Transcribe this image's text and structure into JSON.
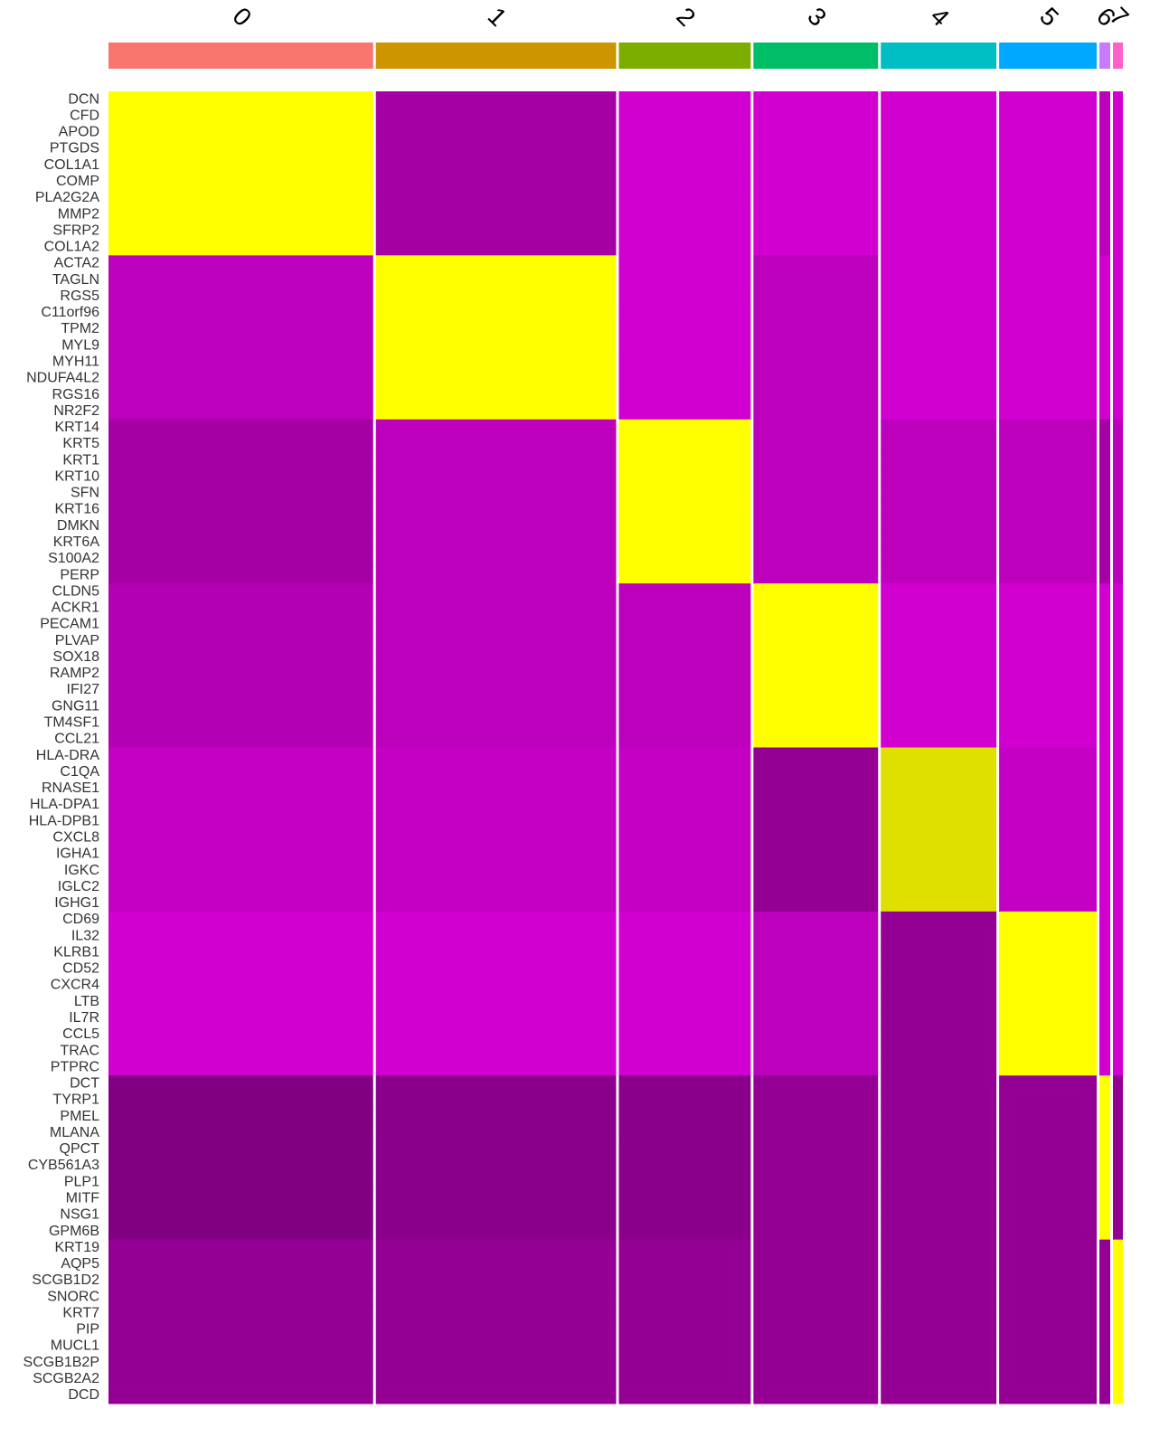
{
  "chart_data": {
    "type": "heatmap",
    "clusters": [
      {
        "name": "0",
        "color": "#F8766D",
        "cells": 293
      },
      {
        "name": "1",
        "color": "#CD9600",
        "cells": 266
      },
      {
        "name": "2",
        "color": "#7CAE00",
        "cells": 146
      },
      {
        "name": "3",
        "color": "#00BE67",
        "cells": 138
      },
      {
        "name": "4",
        "color": "#00BFC4",
        "cells": 128
      },
      {
        "name": "5",
        "color": "#00A9FF",
        "cells": 108
      },
      {
        "name": "6",
        "color": "#C77CFF",
        "cells": 12
      },
      {
        "name": "7",
        "color": "#FF61CC",
        "cells": 11
      }
    ],
    "rows": [
      "DCN",
      "CFD",
      "APOD",
      "PTGDS",
      "COL1A1",
      "COMP",
      "PLA2G2A",
      "MMP2",
      "SFRP2",
      "COL1A2",
      "ACTA2",
      "TAGLN",
      "RGS5",
      "C11orf96",
      "TPM2",
      "MYL9",
      "MYH11",
      "NDUFA4L2",
      "RGS16",
      "NR2F2",
      "KRT14",
      "KRT5",
      "KRT1",
      "KRT10",
      "SFN",
      "KRT16",
      "DMKN",
      "KRT6A",
      "S100A2",
      "PERP",
      "CLDN5",
      "ACKR1",
      "PECAM1",
      "PLVAP",
      "SOX18",
      "RAMP2",
      "IFI27",
      "GNG11",
      "TM4SF1",
      "CCL21",
      "HLA-DRA",
      "C1QA",
      "RNASE1",
      "HLA-DPA1",
      "HLA-DPB1",
      "CXCL8",
      "IGHA1",
      "IGKC",
      "IGLC2",
      "IGHG1",
      "CD69",
      "IL32",
      "KLRB1",
      "CD52",
      "CXCR4",
      "LTB",
      "IL7R",
      "CCL5",
      "TRAC",
      "PTPRC",
      "DCT",
      "TYRP1",
      "PMEL",
      "MLANA",
      "QPCT",
      "CYB561A3",
      "PLP1",
      "MITF",
      "NSG1",
      "GPM6B",
      "KRT19",
      "AQP5",
      "SCGB1D2",
      "SNORC",
      "KRT7",
      "PIP",
      "MUCL1",
      "SCGB1B2P",
      "SCGB2A2",
      "DCD"
    ],
    "values": [
      [
        2.5,
        -1.2,
        -1.8,
        -1.8,
        -1.8,
        -1.8,
        -1.5,
        -1.8
      ],
      [
        2.5,
        -1.2,
        -1.8,
        -1.8,
        -1.8,
        -1.8,
        -1.5,
        -1.8
      ],
      [
        2.5,
        -1.2,
        -1.8,
        -1.8,
        -1.8,
        -1.8,
        -1.5,
        -1.8
      ],
      [
        2.5,
        -1.2,
        -1.8,
        -1.8,
        -1.8,
        -1.8,
        -1.5,
        -1.8
      ],
      [
        2.5,
        -1.2,
        -1.8,
        -1.8,
        -1.8,
        -1.8,
        -1.5,
        -1.8
      ],
      [
        2.5,
        -1.2,
        -1.8,
        -1.8,
        -1.8,
        -1.8,
        -1.5,
        -1.8
      ],
      [
        2.5,
        -1.2,
        -1.8,
        -1.8,
        -1.8,
        -1.8,
        -1.5,
        -1.8
      ],
      [
        2.5,
        -1.2,
        -1.8,
        -1.8,
        -1.8,
        -1.8,
        -1.5,
        -1.8
      ],
      [
        2.5,
        -1.2,
        -1.8,
        -1.8,
        -1.8,
        -1.8,
        -1.5,
        -1.8
      ],
      [
        2.5,
        -1.2,
        -1.8,
        -1.8,
        -1.8,
        -1.8,
        -1.5,
        -1.8
      ],
      [
        -1.5,
        2.5,
        -1.8,
        -1.5,
        -1.8,
        -1.8,
        -1.8,
        -1.8
      ],
      [
        -1.5,
        2.5,
        -1.8,
        -1.5,
        -1.8,
        -1.8,
        -1.8,
        -1.8
      ],
      [
        -1.5,
        2.5,
        -1.8,
        -1.5,
        -1.8,
        -1.8,
        -1.8,
        -1.8
      ],
      [
        -1.5,
        2.5,
        -1.8,
        -1.5,
        -1.8,
        -1.8,
        -1.8,
        -1.8
      ],
      [
        -1.5,
        2.5,
        -1.8,
        -1.5,
        -1.8,
        -1.8,
        -1.8,
        -1.8
      ],
      [
        -1.5,
        2.5,
        -1.8,
        -1.5,
        -1.8,
        -1.8,
        -1.8,
        -1.8
      ],
      [
        -1.5,
        2.5,
        -1.8,
        -1.5,
        -1.8,
        -1.8,
        -1.8,
        -1.8
      ],
      [
        -1.5,
        2.5,
        -1.8,
        -1.5,
        -1.8,
        -1.8,
        -1.8,
        -1.8
      ],
      [
        -1.5,
        2.5,
        -1.8,
        -1.5,
        -1.8,
        -1.8,
        -1.8,
        -1.8
      ],
      [
        -1.5,
        2.5,
        -1.8,
        -1.5,
        -1.8,
        -1.8,
        -1.8,
        -1.8
      ],
      [
        -1.2,
        -1.5,
        2.5,
        -1.5,
        -1.5,
        -1.5,
        -1.2,
        -1.5
      ],
      [
        -1.2,
        -1.5,
        2.5,
        -1.5,
        -1.5,
        -1.5,
        -1.2,
        -1.5
      ],
      [
        -1.2,
        -1.5,
        2.5,
        -1.5,
        -1.5,
        -1.5,
        -1.2,
        -1.5
      ],
      [
        -1.2,
        -1.5,
        2.5,
        -1.5,
        -1.5,
        -1.5,
        -1.2,
        -1.5
      ],
      [
        -1.2,
        -1.5,
        2.5,
        -1.5,
        -1.5,
        -1.5,
        -1.2,
        -1.5
      ],
      [
        -1.2,
        -1.5,
        2.5,
        -1.5,
        -1.5,
        -1.5,
        -1.2,
        -1.5
      ],
      [
        -1.2,
        -1.5,
        2.5,
        -1.5,
        -1.5,
        -1.5,
        -1.2,
        -1.5
      ],
      [
        -1.2,
        -1.5,
        2.5,
        -1.5,
        -1.5,
        -1.5,
        -1.2,
        -1.5
      ],
      [
        -1.2,
        -1.5,
        2.5,
        -1.5,
        -1.5,
        -1.5,
        -1.2,
        -1.5
      ],
      [
        -1.2,
        -1.5,
        2.5,
        -1.5,
        -1.5,
        -1.5,
        -1.2,
        -1.5
      ],
      [
        -1.4,
        -1.5,
        -1.5,
        2.5,
        -1.8,
        -1.8,
        -1.8,
        -1.8
      ],
      [
        -1.4,
        -1.5,
        -1.5,
        2.5,
        -1.8,
        -1.8,
        -1.8,
        -1.8
      ],
      [
        -1.4,
        -1.5,
        -1.5,
        2.5,
        -1.8,
        -1.8,
        -1.8,
        -1.8
      ],
      [
        -1.4,
        -1.5,
        -1.5,
        2.5,
        -1.8,
        -1.8,
        -1.8,
        -1.8
      ],
      [
        -1.4,
        -1.5,
        -1.5,
        2.5,
        -1.8,
        -1.8,
        -1.8,
        -1.8
      ],
      [
        -1.4,
        -1.5,
        -1.5,
        2.5,
        -1.8,
        -1.8,
        -1.8,
        -1.8
      ],
      [
        -1.4,
        -1.5,
        -1.5,
        2.5,
        -1.8,
        -1.8,
        -1.8,
        -1.8
      ],
      [
        -1.4,
        -1.5,
        -1.5,
        2.5,
        -1.8,
        -1.8,
        -1.8,
        -1.8
      ],
      [
        -1.4,
        -1.5,
        -1.5,
        2.5,
        -1.8,
        -1.8,
        -1.8,
        -1.8
      ],
      [
        -1.4,
        -1.5,
        -1.5,
        2.5,
        -1.8,
        -1.8,
        -1.8,
        -1.8
      ],
      [
        -1.6,
        -1.6,
        -1.6,
        -1.0,
        2.0,
        -1.6,
        -1.8,
        -1.8
      ],
      [
        -1.6,
        -1.6,
        -1.6,
        -1.0,
        2.0,
        -1.6,
        -1.8,
        -1.8
      ],
      [
        -1.6,
        -1.6,
        -1.6,
        -1.0,
        2.0,
        -1.6,
        -1.8,
        -1.8
      ],
      [
        -1.6,
        -1.6,
        -1.6,
        -1.0,
        2.0,
        -1.6,
        -1.8,
        -1.8
      ],
      [
        -1.6,
        -1.6,
        -1.6,
        -1.0,
        2.0,
        -1.6,
        -1.8,
        -1.8
      ],
      [
        -1.6,
        -1.6,
        -1.6,
        -1.0,
        2.0,
        -1.6,
        -1.8,
        -1.8
      ],
      [
        -1.6,
        -1.6,
        -1.6,
        -1.0,
        2.0,
        -1.6,
        -1.8,
        -1.8
      ],
      [
        -1.6,
        -1.6,
        -1.6,
        -1.0,
        2.0,
        -1.6,
        -1.8,
        -1.8
      ],
      [
        -1.6,
        -1.6,
        -1.6,
        -1.0,
        2.0,
        -1.6,
        -1.8,
        -1.8
      ],
      [
        -1.6,
        -1.6,
        -1.6,
        -1.0,
        2.0,
        -1.6,
        -1.8,
        -1.8
      ],
      [
        -1.8,
        -1.8,
        -1.8,
        -1.5,
        -1.0,
        2.5,
        -1.8,
        -1.8
      ],
      [
        -1.8,
        -1.8,
        -1.8,
        -1.5,
        -1.0,
        2.5,
        -1.8,
        -1.8
      ],
      [
        -1.8,
        -1.8,
        -1.8,
        -1.5,
        -1.0,
        2.5,
        -1.8,
        -1.8
      ],
      [
        -1.8,
        -1.8,
        -1.8,
        -1.5,
        -1.0,
        2.5,
        -1.8,
        -1.8
      ],
      [
        -1.8,
        -1.8,
        -1.8,
        -1.5,
        -1.0,
        2.5,
        -1.8,
        -1.8
      ],
      [
        -1.8,
        -1.8,
        -1.8,
        -1.5,
        -1.0,
        2.5,
        -1.8,
        -1.8
      ],
      [
        -1.8,
        -1.8,
        -1.8,
        -1.5,
        -1.0,
        2.5,
        -1.8,
        -1.8
      ],
      [
        -1.8,
        -1.8,
        -1.8,
        -1.5,
        -1.0,
        2.5,
        -1.8,
        -1.8
      ],
      [
        -1.8,
        -1.8,
        -1.8,
        -1.5,
        -1.0,
        2.5,
        -1.8,
        -1.8
      ],
      [
        -1.8,
        -1.8,
        -1.8,
        -1.5,
        -1.0,
        2.5,
        -1.8,
        -1.8
      ],
      [
        -0.8,
        -0.9,
        -0.9,
        -1.0,
        -1.0,
        -1.0,
        2.5,
        -1.0
      ],
      [
        -0.8,
        -0.9,
        -0.9,
        -1.0,
        -1.0,
        -1.0,
        2.5,
        -1.0
      ],
      [
        -0.8,
        -0.9,
        -0.9,
        -1.0,
        -1.0,
        -1.0,
        2.5,
        -1.0
      ],
      [
        -0.8,
        -0.9,
        -0.9,
        -1.0,
        -1.0,
        -1.0,
        2.5,
        -1.0
      ],
      [
        -0.8,
        -0.9,
        -0.9,
        -1.0,
        -1.0,
        -1.0,
        2.5,
        -1.0
      ],
      [
        -0.8,
        -0.9,
        -0.9,
        -1.0,
        -1.0,
        -1.0,
        2.5,
        -1.0
      ],
      [
        -0.8,
        -0.9,
        -0.9,
        -1.0,
        -1.0,
        -1.0,
        2.5,
        -1.0
      ],
      [
        -0.8,
        -0.9,
        -0.9,
        -1.0,
        -1.0,
        -1.0,
        2.5,
        -1.0
      ],
      [
        -0.8,
        -0.9,
        -0.9,
        -1.0,
        -1.0,
        -1.0,
        2.5,
        -1.0
      ],
      [
        -0.8,
        -0.9,
        -0.9,
        -1.0,
        -1.0,
        -1.0,
        2.5,
        -1.0
      ],
      [
        -1.0,
        -1.0,
        -1.0,
        -1.0,
        -1.0,
        -1.0,
        -1.0,
        2.5
      ],
      [
        -1.0,
        -1.0,
        -1.0,
        -1.0,
        -1.0,
        -1.0,
        -1.0,
        2.5
      ],
      [
        -1.0,
        -1.0,
        -1.0,
        -1.0,
        -1.0,
        -1.0,
        -1.0,
        2.5
      ],
      [
        -1.0,
        -1.0,
        -1.0,
        -1.0,
        -1.0,
        -1.0,
        -1.0,
        2.5
      ],
      [
        -1.0,
        -1.0,
        -1.0,
        -1.0,
        -1.0,
        -1.0,
        -1.0,
        2.5
      ],
      [
        -1.0,
        -1.0,
        -1.0,
        -1.0,
        -1.0,
        -1.0,
        -1.0,
        2.5
      ],
      [
        -1.0,
        -1.0,
        -1.0,
        -1.0,
        -1.0,
        -1.0,
        -1.0,
        2.5
      ],
      [
        -1.0,
        -1.0,
        -1.0,
        -1.0,
        -1.0,
        -1.0,
        -1.0,
        2.5
      ],
      [
        -1.0,
        -1.0,
        -1.0,
        -1.0,
        -1.0,
        -1.0,
        -1.0,
        2.5
      ],
      [
        -1.0,
        -1.0,
        -1.0,
        -1.0,
        -1.0,
        -1.0,
        -1.0,
        2.5
      ]
    ]
  }
}
